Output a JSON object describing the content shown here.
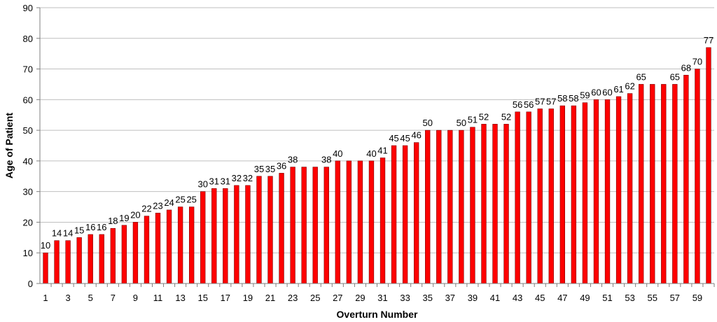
{
  "chart_data": {
    "type": "bar",
    "title": "",
    "xlabel": "Overturn Number",
    "ylabel": "Age of Patient",
    "ylim": [
      0,
      90
    ],
    "y_ticks": [
      0,
      10,
      20,
      30,
      40,
      50,
      60,
      70,
      80,
      90
    ],
    "x_tick_labels": [
      "1",
      "3",
      "5",
      "7",
      "9",
      "11",
      "13",
      "15",
      "17",
      "19",
      "21",
      "23",
      "25",
      "27",
      "29",
      "31",
      "33",
      "35",
      "37",
      "39",
      "41",
      "43",
      "45",
      "47",
      "49",
      "51",
      "53",
      "55",
      "57",
      "59"
    ],
    "grid": true,
    "legend": "none",
    "bar_color": "#ff0000",
    "categories": [
      1,
      2,
      3,
      4,
      5,
      6,
      7,
      8,
      9,
      10,
      11,
      12,
      13,
      14,
      15,
      16,
      17,
      18,
      19,
      20,
      21,
      22,
      23,
      24,
      25,
      26,
      27,
      28,
      29,
      30,
      31,
      32,
      33,
      34,
      35,
      36,
      37,
      38,
      39,
      40,
      41,
      42,
      43,
      44,
      45,
      46,
      47,
      48,
      49,
      50,
      51,
      52,
      53,
      54,
      55,
      56,
      57,
      58,
      59,
      60
    ],
    "values": [
      10,
      14,
      14,
      15,
      16,
      16,
      18,
      19,
      20,
      22,
      23,
      24,
      25,
      25,
      30,
      31,
      31,
      32,
      32,
      35,
      35,
      36,
      38,
      38,
      38,
      38,
      40,
      40,
      40,
      40,
      41,
      45,
      45,
      46,
      50,
      50,
      50,
      50,
      51,
      52,
      52,
      52,
      56,
      56,
      57,
      57,
      58,
      58,
      59,
      60,
      60,
      61,
      62,
      65,
      65,
      65,
      65,
      68,
      70,
      77
    ],
    "data_labels": [
      "10",
      "14",
      "14",
      "15",
      "16",
      "16",
      "18",
      "19",
      "20",
      "22",
      "23",
      "24",
      "25",
      "25",
      "30",
      "31",
      "31",
      "32",
      "32",
      "35",
      "35",
      "36",
      "38",
      "",
      "",
      "38",
      "40",
      "",
      "",
      "40",
      "41",
      "45",
      "45",
      "46",
      "50",
      "",
      "",
      "50",
      "51",
      "52",
      "",
      "52",
      "56",
      "56",
      "57",
      "57",
      "58",
      "58",
      "59",
      "60",
      "60",
      "61",
      "62",
      "65",
      "",
      "",
      "65",
      "68",
      "70",
      "77"
    ]
  }
}
